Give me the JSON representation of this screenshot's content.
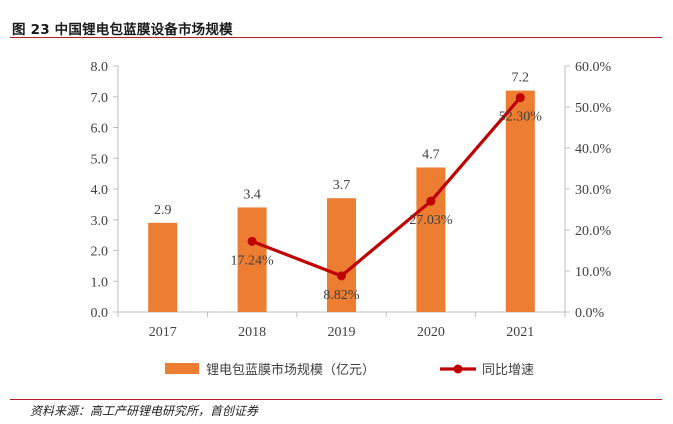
{
  "header": {
    "figure_title": "图 23  中国锂电包蓝膜设备市场规模"
  },
  "footer": {
    "source": "资料来源：高工产研锂电研究所，首创证券"
  },
  "colors": {
    "bar": "#ed7d31",
    "line": "#c00000",
    "axis": "#bfbfbf",
    "text": "#404040",
    "rule": "#b11f24"
  },
  "chart_data": {
    "type": "bar",
    "title": "中国锂电包蓝膜设备市场规模",
    "categories": [
      "2017",
      "2018",
      "2019",
      "2020",
      "2021"
    ],
    "series": [
      {
        "name": "锂电包蓝膜市场规模（亿元）",
        "type": "bar",
        "axis": "left",
        "values": [
          2.9,
          3.4,
          3.7,
          4.7,
          7.2
        ],
        "labels": [
          "2.9",
          "3.4",
          "3.7",
          "4.7",
          "7.2"
        ]
      },
      {
        "name": "同比增速",
        "type": "line",
        "axis": "right",
        "values": [
          null,
          17.24,
          8.82,
          27.03,
          52.3
        ],
        "labels": [
          "",
          "17.24%",
          "8.82%",
          "27.03%",
          "52.30%"
        ]
      }
    ],
    "y_left": {
      "min": 0,
      "max": 8,
      "step": 1,
      "tick_labels": [
        "0.0",
        "1.0",
        "2.0",
        "3.0",
        "4.0",
        "5.0",
        "6.0",
        "7.0",
        "8.0"
      ]
    },
    "y_right": {
      "min": 0,
      "max": 60,
      "step": 10,
      "tick_labels": [
        "0.0%",
        "10.0%",
        "20.0%",
        "30.0%",
        "40.0%",
        "50.0%",
        "60.0%"
      ]
    },
    "xlabel": "",
    "ylabel": "",
    "grid": false,
    "legend_position": "bottom"
  }
}
